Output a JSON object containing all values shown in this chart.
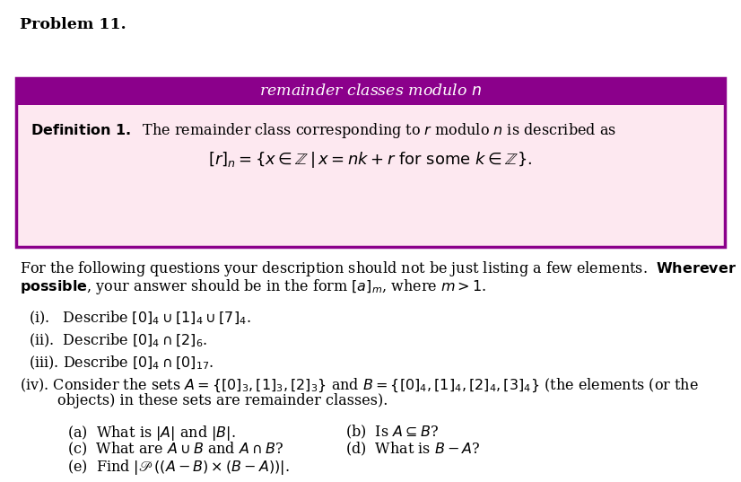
{
  "background_color": "#ffffff",
  "box_header_bg": "#8B008B",
  "box_header_text_color": "#ffffff",
  "box_body_bg": "#FDE8F0",
  "box_border_color": "#8B008B",
  "text_color": "#000000",
  "font_size_title": 12.5,
  "font_size_body": 11.5,
  "font_size_header": 12.5,
  "font_size_formula": 13
}
